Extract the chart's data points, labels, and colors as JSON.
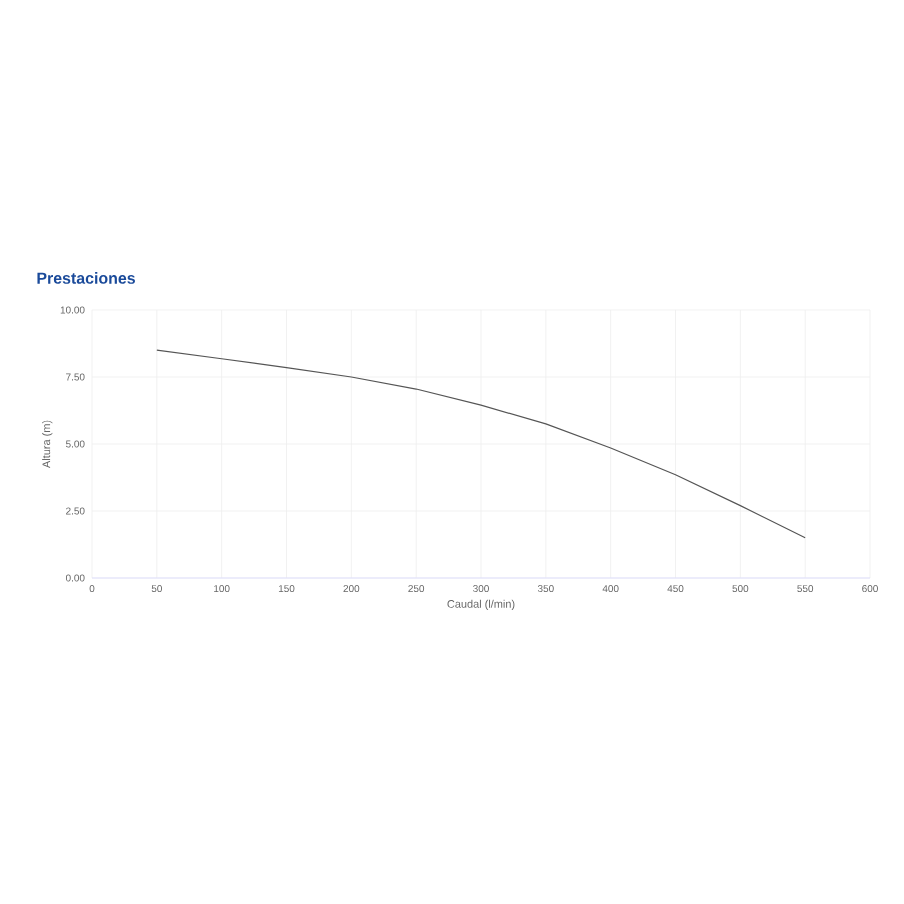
{
  "chart_data": {
    "type": "line",
    "title": "Prestaciones",
    "xlabel": "Caudal (l/min)",
    "ylabel": "Altura (m)",
    "x": [
      50,
      100,
      150,
      200,
      250,
      300,
      350,
      400,
      450,
      500,
      550
    ],
    "series": [
      {
        "color": "#555555",
        "values": [
          8.5,
          8.18,
          7.85,
          7.5,
          7.05,
          6.45,
          5.75,
          4.85,
          3.85,
          2.7,
          1.5
        ]
      }
    ],
    "xlim": [
      0,
      600
    ],
    "ylim": [
      0,
      10
    ],
    "xticks": [
      0,
      50,
      100,
      150,
      200,
      250,
      300,
      350,
      400,
      450,
      500,
      550,
      600
    ],
    "yticks": [
      {
        "value": 0,
        "label": "0.00"
      },
      {
        "value": 2.5,
        "label": "2.50"
      },
      {
        "value": 5,
        "label": "5.00"
      },
      {
        "value": 7.5,
        "label": "7.50"
      },
      {
        "value": 10,
        "label": "10.00"
      }
    ],
    "grid": true,
    "marker": "none",
    "line_style": "solid"
  }
}
